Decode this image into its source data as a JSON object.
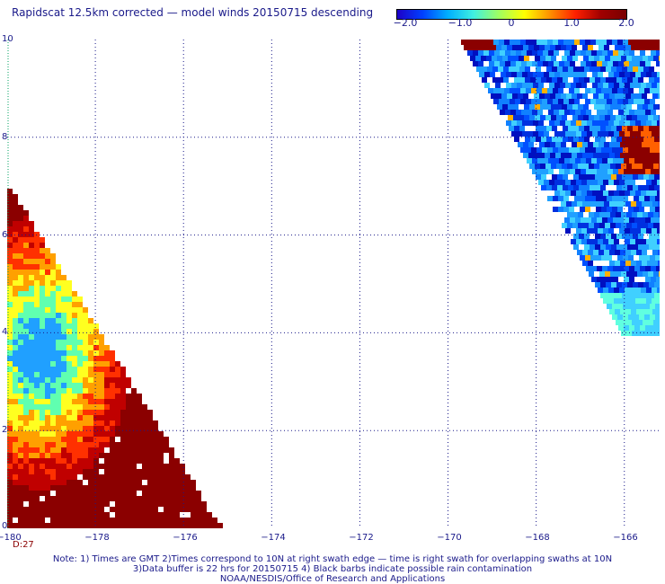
{
  "title": "Rapidscat 12.5km corrected — model winds 20150715 descending",
  "colorbar": {
    "ticks": [
      "−2.0",
      "−1.0",
      "0",
      "1.0",
      "2.0"
    ],
    "range": [
      -2.0,
      2.0
    ]
  },
  "axes": {
    "x_ticks": [
      "−180",
      "−178",
      "−176",
      "−174",
      "−172",
      "−170",
      "−168",
      "−166"
    ],
    "y_ticks": [
      "0",
      "2",
      "4",
      "6",
      "8",
      "10"
    ],
    "x_range": [
      -180,
      -165.2
    ],
    "y_range": [
      0,
      10
    ]
  },
  "d_label": "D:27",
  "notes": [
    "Note: 1) Times are GMT 2)Times correspond to 10N at right swath edge — time is right swath for overlapping swaths at 10N",
    "3)Data buffer is 22 hrs for 20150715 4) Black barbs indicate possible rain contamination",
    "NOAA/NESDIS/Office of Research and Applications"
  ],
  "colors": {
    "text": "#1a1a8a",
    "grid": "#1a1a8a",
    "dark_red": "#8b0000"
  }
}
